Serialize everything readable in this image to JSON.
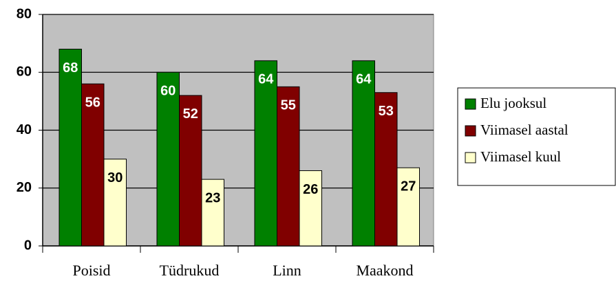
{
  "chart_data": {
    "type": "bar",
    "categories": [
      "Poisid",
      "Tüdrukud",
      "Linn",
      "Maakond"
    ],
    "series": [
      {
        "name": "Elu jooksul",
        "color": "#008000",
        "values": [
          68,
          60,
          64,
          64
        ]
      },
      {
        "name": "Viimasel aastal",
        "color": "#800000",
        "values": [
          56,
          52,
          55,
          53
        ]
      },
      {
        "name": "Viimasel kuul",
        "color": "#ffffcc",
        "values": [
          30,
          23,
          26,
          27
        ]
      }
    ],
    "ylim": [
      0,
      80
    ],
    "yticks": [
      0,
      20,
      40,
      60,
      80
    ],
    "grid": true,
    "legend": "right"
  }
}
